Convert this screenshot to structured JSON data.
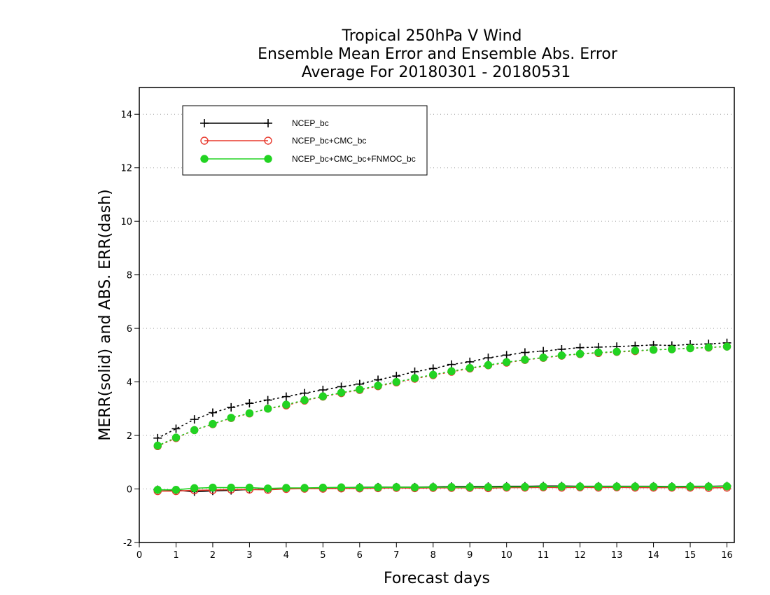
{
  "chart_data": {
    "type": "line",
    "title_lines": [
      "Tropical 250hPa V Wind",
      "Ensemble Mean Error and Ensemble Abs. Error",
      "Average For 20180301 - 20180531"
    ],
    "xlabel": "Forecast days",
    "ylabel": "MERR(solid) and ABS. ERR(dash)",
    "xlim": [
      0,
      16.2
    ],
    "ylim": [
      -2,
      15
    ],
    "xticks": [
      0,
      1,
      2,
      3,
      4,
      5,
      6,
      7,
      8,
      9,
      10,
      11,
      12,
      13,
      14,
      15,
      16
    ],
    "yticks": [
      -2,
      0,
      2,
      4,
      6,
      8,
      10,
      12,
      14
    ],
    "grid": "horizontal dotted",
    "legend_position": "top-left",
    "x": [
      0.5,
      1,
      1.5,
      2,
      2.5,
      3,
      3.5,
      4,
      4.5,
      5,
      5.5,
      6,
      6.5,
      7,
      7.5,
      8,
      8.5,
      9,
      9.5,
      10,
      10.5,
      11,
      11.5,
      12,
      12.5,
      13,
      13.5,
      14,
      14.5,
      15,
      15.5,
      16
    ],
    "series": [
      {
        "name": "NCEP_bc",
        "color": "#000000",
        "marker": "plus",
        "mean_error": [
          -0.03,
          -0.05,
          -0.1,
          -0.07,
          -0.05,
          -0.02,
          -0.01,
          0.02,
          0.03,
          0.04,
          0.05,
          0.06,
          0.07,
          0.07,
          0.07,
          0.08,
          0.09,
          0.09,
          0.09,
          0.1,
          0.1,
          0.11,
          0.11,
          0.1,
          0.1,
          0.1,
          0.1,
          0.1,
          0.09,
          0.1,
          0.1,
          0.11
        ],
        "abs_error": [
          1.9,
          2.25,
          2.6,
          2.85,
          3.05,
          3.2,
          3.32,
          3.45,
          3.58,
          3.7,
          3.82,
          3.92,
          4.08,
          4.22,
          4.38,
          4.5,
          4.65,
          4.75,
          4.9,
          5.0,
          5.1,
          5.15,
          5.22,
          5.28,
          5.3,
          5.32,
          5.35,
          5.38,
          5.36,
          5.4,
          5.42,
          5.46
        ]
      },
      {
        "name": "NCEP_bc+CMC_bc",
        "color": "#e8382c",
        "marker": "open-circle",
        "mean_error": [
          -0.08,
          -0.08,
          -0.05,
          -0.04,
          -0.02,
          -0.02,
          -0.03,
          0.0,
          0.01,
          0.01,
          0.02,
          0.02,
          0.03,
          0.04,
          0.03,
          0.04,
          0.04,
          0.04,
          0.03,
          0.05,
          0.05,
          0.06,
          0.05,
          0.06,
          0.05,
          0.06,
          0.05,
          0.05,
          0.05,
          0.05,
          0.04,
          0.05
        ],
        "abs_error": [
          1.6,
          1.9,
          2.2,
          2.42,
          2.65,
          2.82,
          3.0,
          3.12,
          3.3,
          3.45,
          3.58,
          3.7,
          3.84,
          3.98,
          4.12,
          4.25,
          4.38,
          4.5,
          4.62,
          4.72,
          4.82,
          4.9,
          4.98,
          5.04,
          5.08,
          5.12,
          5.15,
          5.2,
          5.22,
          5.26,
          5.28,
          5.32
        ]
      },
      {
        "name": "NCEP_bc+CMC_bc+FNMOC_bc",
        "color": "#22d322",
        "marker": "filled-circle",
        "mean_error": [
          -0.03,
          -0.03,
          0.03,
          0.05,
          0.05,
          0.05,
          0.02,
          0.04,
          0.04,
          0.05,
          0.06,
          0.05,
          0.06,
          0.07,
          0.06,
          0.07,
          0.07,
          0.07,
          0.07,
          0.08,
          0.08,
          0.09,
          0.09,
          0.09,
          0.09,
          0.09,
          0.09,
          0.09,
          0.08,
          0.09,
          0.09,
          0.1
        ],
        "abs_error": [
          1.62,
          1.92,
          2.2,
          2.43,
          2.66,
          2.83,
          3.0,
          3.15,
          3.32,
          3.46,
          3.6,
          3.72,
          3.86,
          4.0,
          4.14,
          4.27,
          4.4,
          4.52,
          4.63,
          4.74,
          4.83,
          4.91,
          4.99,
          5.05,
          5.1,
          5.13,
          5.17,
          5.2,
          5.22,
          5.26,
          5.29,
          5.32
        ]
      }
    ]
  }
}
